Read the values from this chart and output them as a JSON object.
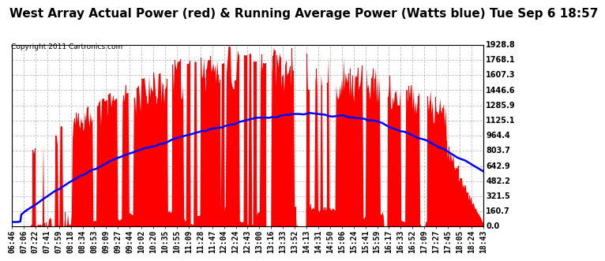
{
  "title": "West Array Actual Power (red) & Running Average Power (Watts blue) Tue Sep 6 18:57",
  "copyright": "Copyright 2011 Cartronics.com",
  "background_color": "#ffffff",
  "plot_bg_color": "#ffffff",
  "grid_color": "#b0b0b0",
  "bar_color": "#ff0000",
  "line_color": "#0000ff",
  "yticks": [
    0.0,
    160.7,
    321.5,
    482.2,
    642.9,
    803.7,
    964.4,
    1125.1,
    1285.9,
    1446.6,
    1607.3,
    1768.1,
    1928.8
  ],
  "ymax": 1928.8,
  "x_labels": [
    "06:46",
    "07:06",
    "07:22",
    "07:41",
    "07:59",
    "08:18",
    "08:34",
    "08:53",
    "09:09",
    "09:27",
    "09:44",
    "10:02",
    "10:20",
    "10:35",
    "10:55",
    "11:09",
    "11:28",
    "11:47",
    "12:04",
    "12:24",
    "12:43",
    "13:00",
    "13:16",
    "13:33",
    "13:52",
    "14:13",
    "14:31",
    "14:50",
    "15:06",
    "15:24",
    "15:41",
    "15:59",
    "16:17",
    "16:33",
    "16:52",
    "17:09",
    "17:27",
    "17:45",
    "18:05",
    "18:24",
    "18:43"
  ],
  "title_fontsize": 11,
  "tick_fontsize": 7,
  "copyright_fontsize": 6.5
}
